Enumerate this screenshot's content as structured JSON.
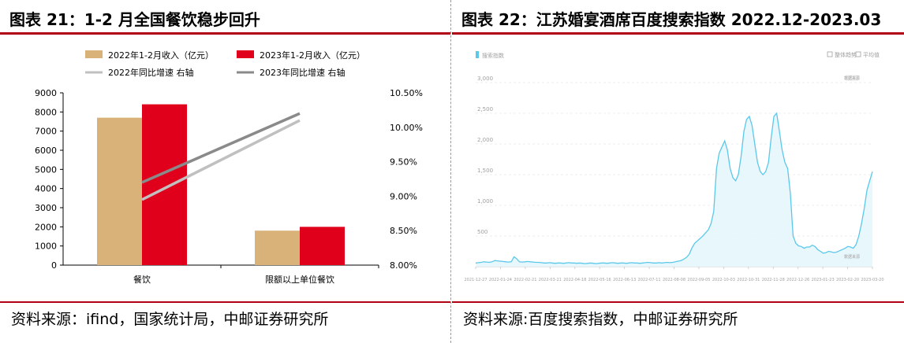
{
  "left": {
    "title": "图表 21：1-2 月全国餐饮稳步回升",
    "source": "资料来源：ifind，国家统计局，中邮证券研究所",
    "chart_data": {
      "type": "bar",
      "categories": [
        "餐饮",
        "限额以上单位餐饮"
      ],
      "series": [
        {
          "name": "2022年1-2月收入（亿元）",
          "kind": "bar",
          "axis": "left",
          "color": "#d9b27a",
          "values": [
            7700,
            1800
          ]
        },
        {
          "name": "2023年1-2月收入（亿元）",
          "kind": "bar",
          "axis": "left",
          "color": "#e0001b",
          "values": [
            8400,
            2000
          ]
        },
        {
          "name": "2022年同比增速 右轴",
          "kind": "line",
          "axis": "right",
          "color": "#c0c0c0",
          "values": [
            8.95,
            10.1
          ]
        },
        {
          "name": "2023年同比增速 右轴",
          "kind": "line",
          "axis": "right",
          "color": "#8a8a8a",
          "values": [
            9.2,
            10.2
          ]
        }
      ],
      "ylim": [
        0,
        9000
      ],
      "yticks": [
        "0",
        "1000",
        "2000",
        "3000",
        "4000",
        "5000",
        "6000",
        "7000",
        "8000",
        "9000"
      ],
      "y2lim": [
        8.0,
        10.5
      ],
      "y2ticks": [
        "8.00%",
        "8.50%",
        "9.00%",
        "9.50%",
        "10.00%",
        "10.50%"
      ],
      "legend": "top"
    }
  },
  "right": {
    "title": "图表 22：江苏婚宴酒席百度搜索指数 2022.12-2023.03",
    "source": "资料来源:百度搜索指数，中邮证券研究所",
    "chart_data": {
      "type": "area",
      "legend_series": "搜索指数",
      "legend_right": [
        "整体趋势",
        "平均值"
      ],
      "badge": "数据来源",
      "color": "#5bc8ea",
      "ylim": [
        0,
        3000
      ],
      "yticks": [
        "500",
        "1,000",
        "1,500",
        "2,000",
        "2,500",
        "3,000"
      ],
      "xticks": [
        "2021-12-27",
        "2022-01-24",
        "2022-02-21",
        "2022-03-21",
        "2022-04-18",
        "2022-05-16",
        "2022-06-13",
        "2022-07-11",
        "2022-08-08",
        "2022-09-05",
        "2022-10-03",
        "2022-10-31",
        "2022-11-28",
        "2022-12-26",
        "2023-01-23",
        "2023-02-20",
        "2023-03-20"
      ],
      "values": [
        60,
        65,
        70,
        80,
        75,
        70,
        80,
        100,
        95,
        90,
        85,
        80,
        75,
        80,
        160,
        130,
        80,
        75,
        80,
        85,
        80,
        75,
        70,
        70,
        65,
        60,
        60,
        65,
        60,
        55,
        60,
        60,
        55,
        60,
        65,
        60,
        60,
        55,
        60,
        55,
        50,
        55,
        60,
        55,
        50,
        55,
        60,
        60,
        55,
        60,
        65,
        60,
        55,
        60,
        60,
        55,
        60,
        65,
        60,
        60,
        55,
        60,
        65,
        70,
        65,
        60,
        60,
        65,
        60,
        65,
        70,
        65,
        70,
        80,
        90,
        100,
        120,
        150,
        200,
        300,
        380,
        420,
        460,
        500,
        550,
        600,
        700,
        900,
        1600,
        1850,
        1950,
        2050,
        1900,
        1600,
        1450,
        1400,
        1500,
        1800,
        2200,
        2400,
        2450,
        2300,
        2000,
        1700,
        1550,
        1500,
        1550,
        1700,
        2100,
        2450,
        2500,
        2200,
        1900,
        1700,
        1600,
        1200,
        500,
        380,
        340,
        330,
        300,
        320,
        320,
        350,
        330,
        280,
        250,
        220,
        230,
        250,
        240,
        230,
        240,
        260,
        280,
        300,
        330,
        320,
        300,
        360,
        500,
        700,
        950,
        1250,
        1400,
        1550
      ]
    }
  }
}
